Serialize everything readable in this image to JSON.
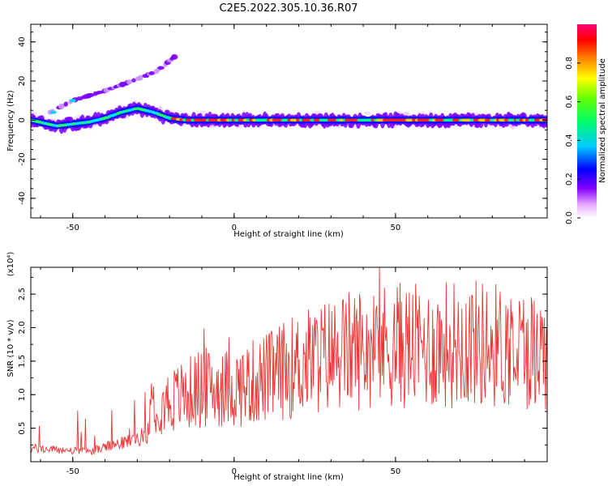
{
  "title": "C2E5.2022.305.10.36.R07",
  "chart_data": [
    {
      "type": "heatmap",
      "xlabel": "Height of straight line (km)",
      "ylabel": "Frequency (Hz)",
      "xlim": [
        -63,
        97
      ],
      "ylim": [
        -50,
        49
      ],
      "x_ticks": [
        -50,
        0,
        50
      ],
      "y_ticks": [
        -40,
        -20,
        0,
        20,
        40
      ],
      "colorbar": {
        "label": "Normalized spectral amplitude",
        "range": [
          0.0,
          1.0
        ],
        "ticks": [
          "0.0",
          "0.2",
          "0.4",
          "0.6",
          "0.8"
        ]
      },
      "main_ridge": [
        [
          -63,
          0
        ],
        [
          -55,
          -3
        ],
        [
          -45,
          -1
        ],
        [
          -40,
          1
        ],
        [
          -35,
          4
        ],
        [
          -30,
          6
        ],
        [
          -25,
          4
        ],
        [
          -20,
          1
        ],
        [
          -15,
          0
        ],
        [
          0,
          0
        ],
        [
          50,
          0
        ],
        [
          97,
          0
        ]
      ],
      "secondary_branch": [
        [
          -57,
          4
        ],
        [
          -50,
          10
        ],
        [
          -40,
          15
        ],
        [
          -35,
          18
        ],
        [
          -30,
          21
        ],
        [
          -24,
          25
        ],
        [
          -18,
          33
        ]
      ]
    },
    {
      "type": "line",
      "xlabel": "Height of straight line (km)",
      "ylabel": "SNR (10 * v/v)",
      "y_multiplier": "(x10⁴)",
      "xlim": [
        -63,
        97
      ],
      "ylim": [
        0,
        2.9
      ],
      "x_ticks": [
        -50,
        0,
        50
      ],
      "y_ticks": [
        "0.5",
        "1.0",
        "1.5",
        "2.0",
        "2.5"
      ],
      "series": [
        {
          "color": "#ee3333",
          "trend_x": [
            -63,
            -45,
            -33,
            -27,
            -25,
            -20,
            -10,
            0,
            10,
            20,
            30,
            40,
            50,
            60,
            70,
            80,
            97
          ],
          "trend_y": [
            0.2,
            0.15,
            0.3,
            0.4,
            0.9,
            0.9,
            1.1,
            1.1,
            1.25,
            1.45,
            1.6,
            1.7,
            1.75,
            1.7,
            1.8,
            1.75,
            1.65
          ]
        }
      ]
    }
  ]
}
